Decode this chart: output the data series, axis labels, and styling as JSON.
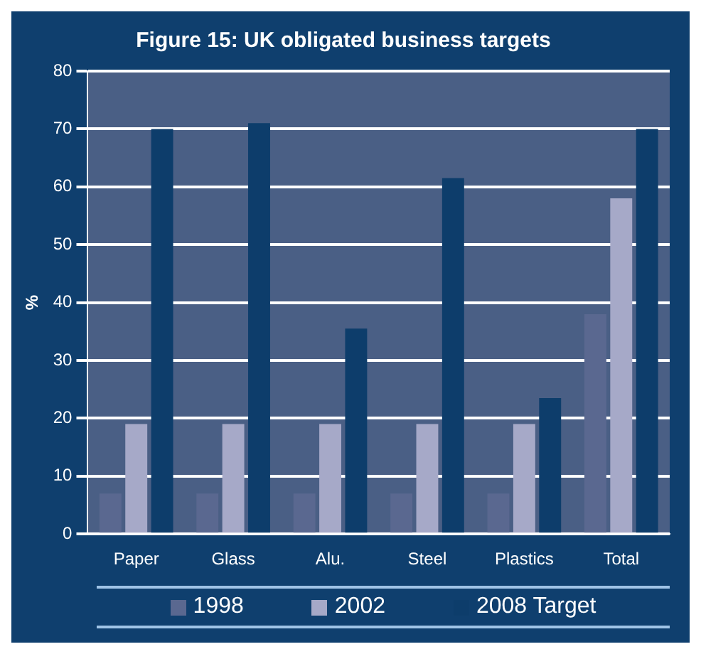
{
  "chart_data": {
    "type": "bar",
    "title": "Figure 15: UK obligated business targets",
    "ylabel": "%",
    "categories": [
      "Paper",
      "Glass",
      "Alu.",
      "Steel",
      "Plastics",
      "Total"
    ],
    "series": [
      {
        "name": "1998",
        "color": "#5a6890",
        "values": [
          7,
          7,
          7,
          7,
          7,
          38
        ]
      },
      {
        "name": "2002",
        "color": "#a6a9c8",
        "values": [
          19,
          19,
          19,
          19,
          19,
          58
        ]
      },
      {
        "name": "2008 Target",
        "color": "#0d3d6b",
        "values": [
          70,
          71,
          35.5,
          61.5,
          23.5,
          70
        ]
      }
    ],
    "ylim": [
      0,
      80
    ],
    "yticks": [
      0,
      10,
      20,
      30,
      40,
      50,
      60,
      70,
      80
    ],
    "grid": "y",
    "legend": "bottom"
  }
}
